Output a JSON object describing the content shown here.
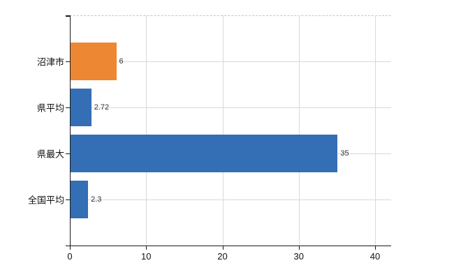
{
  "chart_data": {
    "type": "bar",
    "orientation": "horizontal",
    "title": "",
    "xlabel": "",
    "ylabel": "",
    "categories": [
      "沼津市",
      "県平均",
      "県最大",
      "全国平均"
    ],
    "values": [
      6,
      2.72,
      35,
      2.3
    ],
    "value_labels": [
      "6",
      "2.72",
      "35",
      "2.3"
    ],
    "bar_colors": [
      "#ED8733",
      "#346EB4",
      "#346EB4",
      "#346EB4"
    ],
    "x_tick_labels": [
      "0",
      "10",
      "20",
      "30",
      "40"
    ],
    "x_tick_values": [
      0,
      10,
      20,
      30,
      40
    ],
    "xlim": [
      0,
      42
    ],
    "grid": true,
    "legend": "none",
    "colors": {
      "orange_bar": "#ED8733",
      "blue_bar": "#346EB4",
      "gridline": "#D9D9D9",
      "axis": "#1A1A1A",
      "background": "#FFFFFF",
      "value_label_text": "#333333",
      "tick_label_text": "#111111"
    }
  }
}
